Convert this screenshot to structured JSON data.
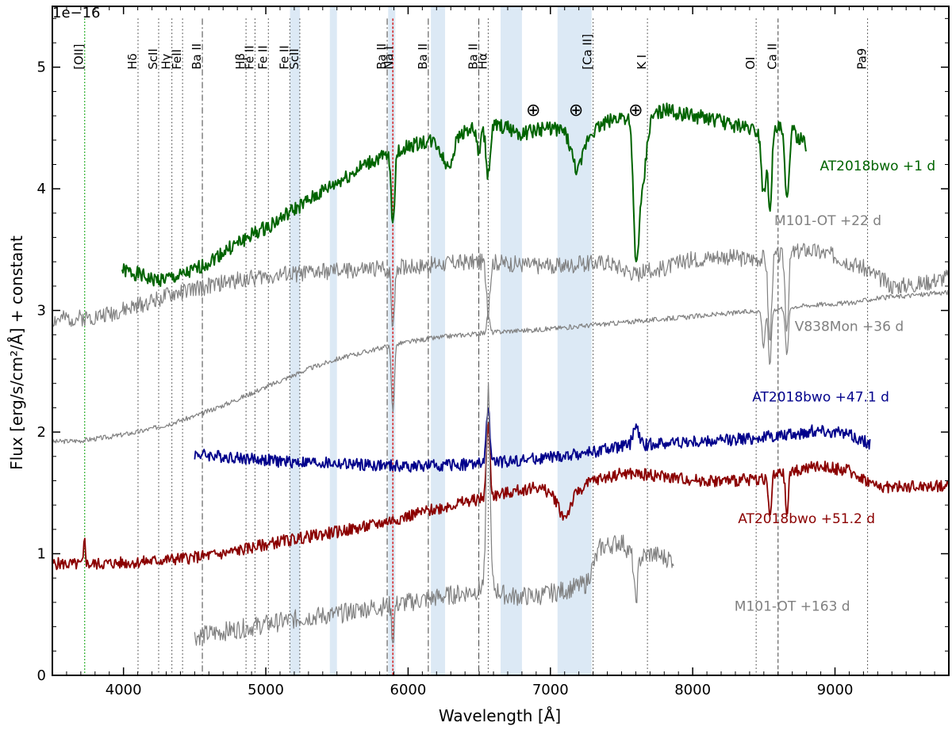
{
  "chart_data": {
    "type": "line",
    "xlabel": "Wavelength [Å]",
    "ylabel": "Flux [erg/s/cm²/Å] + constant",
    "y_offset_label": "1e−16",
    "xlim": [
      3500,
      9800
    ],
    "ylim": [
      0,
      5.5
    ],
    "x_ticks": [
      4000,
      5000,
      6000,
      7000,
      8000,
      9000
    ],
    "x_tick_labels": [
      "4000",
      "5000",
      "6000",
      "7000",
      "8000",
      "9000"
    ],
    "y_ticks": [
      0,
      1,
      2,
      3,
      4,
      5
    ],
    "y_tick_labels": [
      "0",
      "1",
      "2",
      "3",
      "4",
      "5"
    ],
    "grid": false,
    "colors": {
      "green": "#006400",
      "grey": "#808080",
      "navy": "#00008b",
      "darkred": "#8b0000",
      "band": "#dce9f5",
      "na": "#d62728",
      "oii": "#00a000"
    },
    "telluric_symbol": "⊕",
    "telluric_markers": [
      6880,
      7180,
      7600
    ],
    "shaded_bands": [
      [
        5170,
        5240
      ],
      [
        5450,
        5500
      ],
      [
        5860,
        5910
      ],
      [
        6160,
        6260
      ],
      [
        6650,
        6800
      ],
      [
        7050,
        7290
      ]
    ],
    "line_markers": [
      {
        "label": "[OII]",
        "x": 3727,
        "style": "green"
      },
      {
        "label": "Hδ",
        "x": 4102,
        "style": "dotted"
      },
      {
        "label": "ScII",
        "x": 4247,
        "style": "dotted"
      },
      {
        "label": "Hγ",
        "x": 4340,
        "style": "dotted"
      },
      {
        "label": "FeII",
        "x": 4415,
        "style": "dotted"
      },
      {
        "label": "Ba II",
        "x": 4554,
        "style": "dashdot"
      },
      {
        "label": "Hβ",
        "x": 4861,
        "style": "dotted"
      },
      {
        "label": "Fe II",
        "x": 4924,
        "style": "dotted"
      },
      {
        "label": "Fe II",
        "x": 5018,
        "style": "dotted"
      },
      {
        "label": "Fe II",
        "x": 5169,
        "style": "dotted"
      },
      {
        "label": "ScII",
        "x": 5239,
        "style": "dotted"
      },
      {
        "label": "Ba II",
        "x": 5853,
        "style": "dashdot"
      },
      {
        "label": "Na I",
        "x": 5893,
        "style": "red"
      },
      {
        "label": "Ba II",
        "x": 6142,
        "style": "dashdot"
      },
      {
        "label": "Ba II",
        "x": 6497,
        "style": "dashdot"
      },
      {
        "label": "Hα",
        "x": 6563,
        "style": "dotted"
      },
      {
        "label": "[Ca II]",
        "x": 7300,
        "style": "dotted"
      },
      {
        "label": "K I",
        "x": 7682,
        "style": "dotted"
      },
      {
        "label": "OI",
        "x": 8446,
        "style": "dotted"
      },
      {
        "label": "Ca II",
        "x": 8600,
        "style": "dashed"
      },
      {
        "label": "Pa9",
        "x": 9229,
        "style": "dotted"
      }
    ],
    "series": [
      {
        "name": "AT2018bwo +1 d",
        "color": "green",
        "lw": 2.0,
        "noise": 0.06,
        "seed": 1,
        "label_pos": [
          9300,
          4.15
        ],
        "x": [
          3990,
          4100,
          4200,
          4300,
          4400,
          4500,
          4600,
          4700,
          4800,
          4900,
          5000,
          5100,
          5200,
          5300,
          5400,
          5500,
          5600,
          5700,
          5800,
          5900,
          6000,
          6100,
          6200,
          6300,
          6400,
          6500,
          6600,
          6700,
          6800,
          6900,
          7000,
          7100,
          7200,
          7300,
          7400,
          7500,
          7600,
          7700,
          7800,
          7900,
          8000,
          8100,
          8200,
          8300,
          8400,
          8500,
          8600,
          8700,
          8800
        ],
        "y": [
          3.33,
          3.3,
          3.25,
          3.26,
          3.28,
          3.33,
          3.4,
          3.48,
          3.55,
          3.62,
          3.68,
          3.75,
          3.83,
          3.9,
          3.98,
          4.05,
          4.12,
          4.2,
          4.25,
          4.28,
          4.35,
          4.38,
          4.4,
          4.45,
          4.48,
          4.5,
          4.52,
          4.5,
          4.45,
          4.48,
          4.5,
          4.48,
          4.45,
          4.48,
          4.55,
          4.6,
          4.55,
          4.6,
          4.65,
          4.62,
          4.6,
          4.58,
          4.55,
          4.52,
          4.5,
          4.45,
          4.5,
          4.48,
          4.35
        ],
        "features": [
          [
            5893,
            -0.55,
            12
          ],
          [
            6280,
            -0.25,
            40
          ],
          [
            6497,
            -0.2,
            15
          ],
          [
            6563,
            -0.4,
            15
          ],
          [
            7190,
            -0.3,
            40
          ],
          [
            7600,
            -0.9,
            18
          ],
          [
            7640,
            -0.6,
            30
          ],
          [
            8498,
            -0.5,
            14
          ],
          [
            8542,
            -0.6,
            14
          ],
          [
            8662,
            -0.6,
            14
          ]
        ]
      },
      {
        "name": "M101-OT +22 d",
        "color": "grey",
        "lw": 1.2,
        "noise": 0.07,
        "seed": 2,
        "label_pos": [
          8950,
          3.7
        ],
        "x": [
          3500,
          3800,
          4000,
          4200,
          4400,
          4600,
          4800,
          5000,
          5200,
          5400,
          5600,
          5800,
          6000,
          6200,
          6400,
          6600,
          6800,
          7000,
          7200,
          7400,
          7600,
          7800,
          8000,
          8200,
          8400,
          8600,
          8800,
          9000,
          9200,
          9400,
          9600,
          9800
        ],
        "y": [
          2.92,
          2.95,
          3.0,
          3.08,
          3.15,
          3.2,
          3.25,
          3.28,
          3.3,
          3.32,
          3.33,
          3.34,
          3.36,
          3.38,
          3.4,
          3.4,
          3.38,
          3.36,
          3.38,
          3.4,
          3.3,
          3.35,
          3.42,
          3.45,
          3.42,
          3.45,
          3.5,
          3.45,
          3.35,
          3.2,
          3.22,
          3.28
        ],
        "features": [
          [
            5893,
            -0.5,
            10
          ],
          [
            6563,
            -0.45,
            12
          ],
          [
            8542,
            -0.7,
            12
          ],
          [
            8662,
            -0.6,
            12
          ]
        ]
      },
      {
        "name": "V838Mon +36 d",
        "color": "grey",
        "lw": 1.2,
        "noise": 0.02,
        "seed": 3,
        "label_pos": [
          9100,
          2.83
        ],
        "x": [
          3500,
          3700,
          3900,
          4100,
          4300,
          4500,
          4700,
          4900,
          5100,
          5300,
          5500,
          5700,
          5900,
          6100,
          6300,
          6500,
          6700,
          6900,
          7100,
          7300,
          7500,
          7700,
          7900,
          8100,
          8300,
          8500,
          8700,
          8900,
          9100,
          9300,
          9500,
          9800
        ],
        "y": [
          1.92,
          1.93,
          1.96,
          2.0,
          2.06,
          2.13,
          2.22,
          2.32,
          2.42,
          2.52,
          2.6,
          2.66,
          2.72,
          2.76,
          2.79,
          2.81,
          2.83,
          2.84,
          2.86,
          2.88,
          2.9,
          2.92,
          2.94,
          2.96,
          2.98,
          3.0,
          3.03,
          3.05,
          3.06,
          3.1,
          3.12,
          3.15
        ],
        "features": [
          [
            5893,
            -0.55,
            10
          ],
          [
            6563,
            0.15,
            10
          ],
          [
            8498,
            -0.3,
            10
          ],
          [
            8542,
            -0.45,
            10
          ],
          [
            8662,
            -0.4,
            10
          ]
        ]
      },
      {
        "name": "AT2018bwo +47.1 d",
        "color": "navy",
        "lw": 1.8,
        "noise": 0.05,
        "seed": 4,
        "label_pos": [
          8900,
          2.25
        ],
        "x": [
          4500,
          4700,
          4900,
          5100,
          5300,
          5500,
          5700,
          5900,
          6100,
          6300,
          6500,
          6700,
          6900,
          7100,
          7300,
          7500,
          7700,
          7900,
          8100,
          8300,
          8500,
          8700,
          8900,
          9100,
          9250
        ],
        "y": [
          1.82,
          1.8,
          1.78,
          1.76,
          1.75,
          1.74,
          1.73,
          1.72,
          1.72,
          1.73,
          1.74,
          1.76,
          1.78,
          1.8,
          1.84,
          1.88,
          1.9,
          1.92,
          1.92,
          1.94,
          1.96,
          1.98,
          2.02,
          1.98,
          1.9
        ],
        "features": [
          [
            6563,
            0.45,
            12
          ],
          [
            7600,
            0.15,
            20
          ]
        ]
      },
      {
        "name": "AT2018bwo +51.2 d",
        "color": "darkred",
        "lw": 1.8,
        "noise": 0.05,
        "seed": 5,
        "label_pos": [
          8800,
          1.25
        ],
        "x": [
          3500,
          3700,
          3900,
          4100,
          4300,
          4500,
          4700,
          4900,
          5100,
          5300,
          5500,
          5700,
          5900,
          6100,
          6300,
          6500,
          6700,
          6900,
          7100,
          7300,
          7500,
          7700,
          7900,
          8100,
          8300,
          8500,
          8700,
          8900,
          9100,
          9300,
          9500,
          9800
        ],
        "y": [
          0.92,
          0.91,
          0.92,
          0.93,
          0.95,
          0.97,
          1.0,
          1.05,
          1.1,
          1.14,
          1.18,
          1.22,
          1.28,
          1.34,
          1.4,
          1.45,
          1.5,
          1.55,
          1.45,
          1.6,
          1.66,
          1.65,
          1.62,
          1.6,
          1.6,
          1.62,
          1.68,
          1.72,
          1.68,
          1.55,
          1.55,
          1.56
        ],
        "features": [
          [
            3727,
            0.22,
            6
          ],
          [
            6563,
            0.6,
            12
          ],
          [
            7100,
            -0.15,
            40
          ],
          [
            8542,
            -0.35,
            10
          ],
          [
            8662,
            -0.35,
            10
          ]
        ]
      },
      {
        "name": "M101-OT +163 d",
        "color": "grey",
        "lw": 1.2,
        "noise": 0.08,
        "seed": 6,
        "label_pos": [
          8700,
          0.53
        ],
        "x": [
          4500,
          4700,
          4900,
          5100,
          5300,
          5500,
          5700,
          5900,
          6100,
          6300,
          6500,
          6550,
          6620,
          6700,
          6900,
          7100,
          7250,
          7350,
          7500,
          7600,
          7700,
          7870
        ],
        "y": [
          0.32,
          0.36,
          0.4,
          0.44,
          0.48,
          0.5,
          0.55,
          0.58,
          0.62,
          0.66,
          0.7,
          0.8,
          0.7,
          0.65,
          0.65,
          0.7,
          0.75,
          1.05,
          1.1,
          0.95,
          1.0,
          0.95
        ],
        "features": [
          [
            6563,
            1.6,
            12
          ],
          [
            7600,
            -0.35,
            12
          ],
          [
            5893,
            -0.3,
            8
          ]
        ]
      }
    ]
  }
}
